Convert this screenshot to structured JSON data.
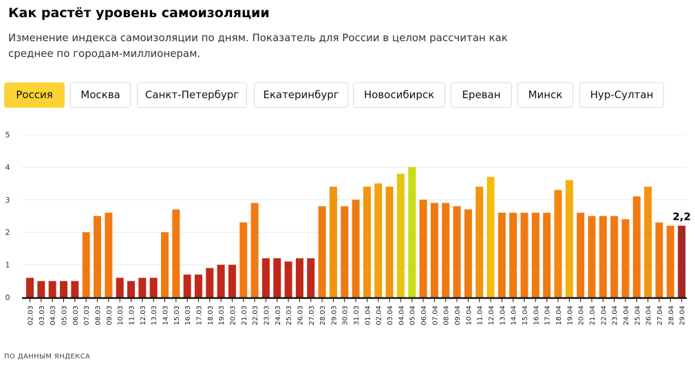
{
  "header": {
    "title": "Как растёт уровень самоизоляции",
    "subtitle": "Изменение индекса самоизоляции по дням. Показатель для России в целом рассчитан как среднее по городам-миллионерам."
  },
  "tabs": [
    {
      "label": "Россия",
      "active": true
    },
    {
      "label": "Москва",
      "active": false
    },
    {
      "label": "Санкт-Петербург",
      "active": false
    },
    {
      "label": "Екатеринбург",
      "active": false
    },
    {
      "label": "Новосибирск",
      "active": false
    },
    {
      "label": "Ереван",
      "active": false
    },
    {
      "label": "Минск",
      "active": false
    },
    {
      "label": "Нур-Султан",
      "active": false
    }
  ],
  "colors": {
    "active_tab": "#fcd237",
    "scale_low": "#c0291a",
    "scale_mid": "#f07a12",
    "scale_high": "#f6bb0c",
    "scale_top": "#c9dd15",
    "last_bar": "#a52a26"
  },
  "chart_data": {
    "type": "bar",
    "title": "",
    "xlabel": "",
    "ylabel": "",
    "ylim": [
      0,
      5
    ],
    "yticks": [
      "0",
      "1",
      "2",
      "3",
      "4",
      "5"
    ],
    "grid": true,
    "categories": [
      "02.03",
      "03.03",
      "04.03",
      "05.03",
      "06.03",
      "07.03",
      "08.03",
      "09.03",
      "10.03",
      "11.03",
      "12.03",
      "13.03",
      "14.03",
      "15.03",
      "16.03",
      "17.03",
      "18.03",
      "19.03",
      "20.03",
      "21.03",
      "22.03",
      "23.03",
      "24.03",
      "25.03",
      "26.03",
      "27.03",
      "28.03",
      "29.03",
      "30.03",
      "31.03",
      "01.04",
      "02.04",
      "03.04",
      "04.04",
      "05.04",
      "06.04",
      "07.04",
      "08.04",
      "09.04",
      "10.04",
      "11.04",
      "12.04",
      "13.04",
      "14.04",
      "15.04",
      "16.04",
      "17.04",
      "18.04",
      "19.04",
      "20.04",
      "21.04",
      "22.04",
      "23.04",
      "24.04",
      "25.04",
      "26.04",
      "27.04",
      "28.04",
      "29.04"
    ],
    "values": [
      0.6,
      0.5,
      0.5,
      0.5,
      0.5,
      2.0,
      2.5,
      2.6,
      0.6,
      0.5,
      0.6,
      0.6,
      2.0,
      2.7,
      0.7,
      0.7,
      0.9,
      1.0,
      1.0,
      2.3,
      2.9,
      1.2,
      1.2,
      1.1,
      1.2,
      1.2,
      2.8,
      3.4,
      2.8,
      3.0,
      3.4,
      3.5,
      3.4,
      3.8,
      4.0,
      3.0,
      2.9,
      2.9,
      2.8,
      2.7,
      3.4,
      3.7,
      2.6,
      2.6,
      2.6,
      2.6,
      2.6,
      3.3,
      3.6,
      2.6,
      2.5,
      2.5,
      2.5,
      2.4,
      3.1,
      3.4,
      2.3,
      2.2,
      2.2
    ],
    "annotation": {
      "category": "29.04",
      "label": "2,2"
    }
  },
  "footer": {
    "source": "ПО ДАННЫМ ЯНДЕКСА"
  }
}
